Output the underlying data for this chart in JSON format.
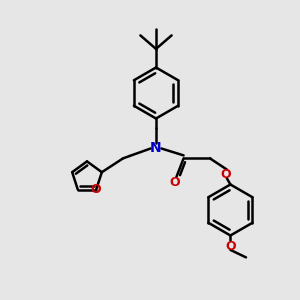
{
  "bg_color": "#e6e6e6",
  "bond_color": "#000000",
  "N_color": "#0000cc",
  "O_color": "#cc0000",
  "lw": 1.8,
  "font_size_atom": 9,
  "fig_size": [
    3.0,
    3.0
  ],
  "dpi": 100,
  "xlim": [
    0,
    10
  ],
  "ylim": [
    0,
    10
  ]
}
